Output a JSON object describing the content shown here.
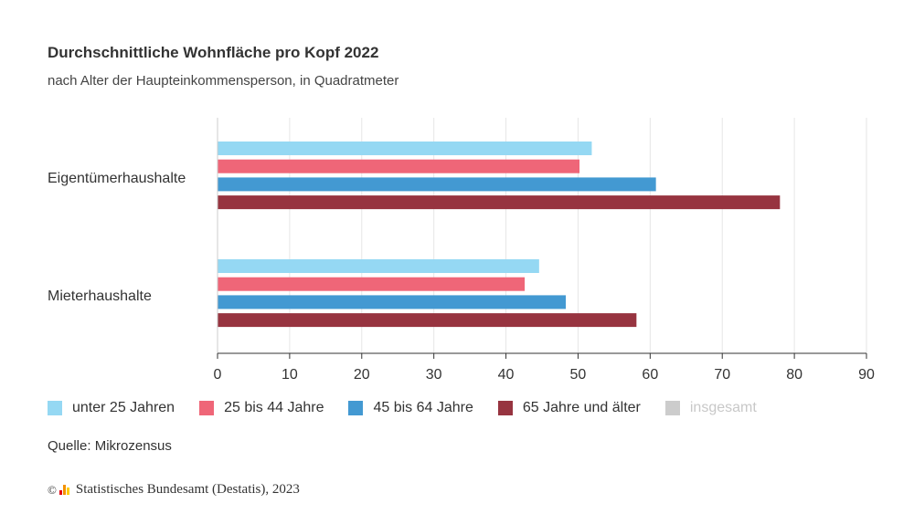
{
  "header": {
    "title": "Durchschnittliche Wohnfläche pro Kopf 2022",
    "subtitle": "nach Alter der Haupteinkommensperson, in Quadratmeter"
  },
  "chart_data": {
    "type": "bar",
    "orientation": "horizontal",
    "title": "Durchschnittliche Wohnfläche pro Kopf 2022",
    "subtitle": "nach Alter der Haupteinkommensperson, in Quadratmeter",
    "categories": [
      "Eigentümerhaushalte",
      "Mieterhaushalte"
    ],
    "xlim": [
      0,
      90
    ],
    "xticks": [
      0,
      10,
      20,
      30,
      40,
      50,
      60,
      70,
      80,
      90
    ],
    "grid": true,
    "series": [
      {
        "name": "unter 25 Jahren",
        "color": "#95d8f3",
        "values": [
          51.9,
          44.6
        ]
      },
      {
        "name": "25 bis 44 Jahre",
        "color": "#ef6678",
        "values": [
          50.2,
          42.6
        ]
      },
      {
        "name": "45 bis 64 Jahre",
        "color": "#4399d2",
        "values": [
          60.8,
          48.3
        ]
      },
      {
        "name": "65 Jahre und älter",
        "color": "#973440",
        "values": [
          78.0,
          58.1
        ]
      }
    ],
    "hidden_series": [
      {
        "name": "insgesamt",
        "color": "#cccccc"
      }
    ]
  },
  "legend": {
    "items": [
      {
        "label": "unter 25 Jahren",
        "color": "#95d8f3",
        "active": true
      },
      {
        "label": "25 bis 44 Jahre",
        "color": "#ef6678",
        "active": true
      },
      {
        "label": "45 bis 64 Jahre",
        "color": "#4399d2",
        "active": true
      },
      {
        "label": "65 Jahre und älter",
        "color": "#973440",
        "active": true
      },
      {
        "label": "insgesamt",
        "color": "#cccccc",
        "active": false
      }
    ]
  },
  "footer": {
    "source": "Quelle: Mikrozensus",
    "copyright_symbol": "©",
    "copyright_text": "Statistisches Bundesamt (Destatis), 2023",
    "logo_colors": [
      "#e30613",
      "#f39200",
      "#ffcc00"
    ]
  }
}
